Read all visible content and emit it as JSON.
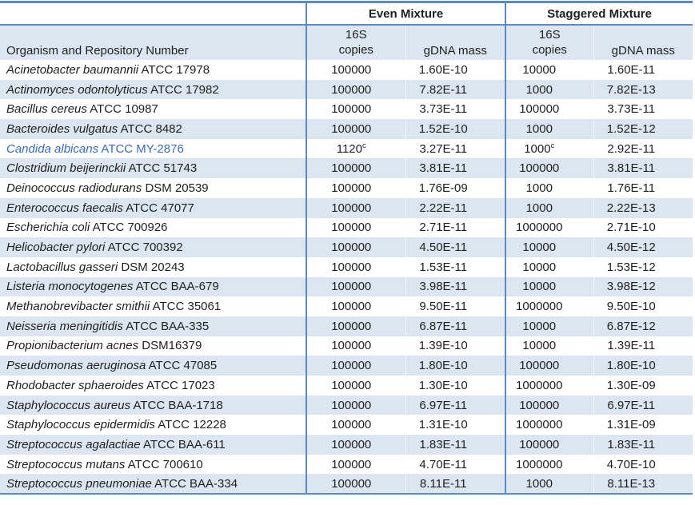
{
  "table": {
    "col_groups": [
      {
        "label": "Even Mixture"
      },
      {
        "label": "Staggered Mixture"
      }
    ],
    "headers": {
      "organism": "Organism and Repository Number",
      "copies_line1": "16S",
      "copies_line2": "copies",
      "gdna": "gDNA mass"
    },
    "rows": [
      {
        "name": "Acinetobacter baumannii",
        "repo": "ATCC 17978",
        "even_copies": "100000",
        "even_gdna": "1.60E-10",
        "stag_copies": "10000",
        "stag_gdna": "1.60E-11"
      },
      {
        "name": "Actinomyces odontolyticus",
        "repo": "ATCC 17982",
        "even_copies": "100000",
        "even_gdna": "7.82E-11",
        "stag_copies": "1000",
        "stag_gdna": "7.82E-13"
      },
      {
        "name": "Bacillus cereus",
        "repo": "ATCC 10987",
        "even_copies": "100000",
        "even_gdna": "3.73E-11",
        "stag_copies": "100000",
        "stag_gdna": "3.73E-11"
      },
      {
        "name": "Bacteroides vulgatus",
        "repo": "ATCC 8482",
        "even_copies": "100000",
        "even_gdna": "1.52E-10",
        "stag_copies": "1000",
        "stag_gdna": "1.52E-12"
      },
      {
        "name": "Candida albicans",
        "repo": "ATCC MY-2876",
        "even_copies": "1120",
        "even_copies_sup": "c",
        "even_gdna": "3.27E-11",
        "stag_copies": "1000",
        "stag_copies_sup": "c",
        "stag_gdna": "2.92E-11",
        "highlight": true
      },
      {
        "name": "Clostridium beijerinckii",
        "repo": "ATCC 51743",
        "even_copies": "100000",
        "even_gdna": "3.81E-11",
        "stag_copies": "100000",
        "stag_gdna": "3.81E-11"
      },
      {
        "name": "Deinococcus radiodurans",
        "repo": "DSM 20539",
        "even_copies": "100000",
        "even_gdna": "1.76E-09",
        "stag_copies": "1000",
        "stag_gdna": "1.76E-11"
      },
      {
        "name": "Enterococcus faecalis",
        "repo": "ATCC 47077",
        "even_copies": "100000",
        "even_gdna": "2.22E-11",
        "stag_copies": "1000",
        "stag_gdna": "2.22E-13"
      },
      {
        "name": "Escherichia coli",
        "repo": "ATCC 700926",
        "even_copies": "100000",
        "even_gdna": "2.71E-11",
        "stag_copies": "1000000",
        "stag_gdna": "2.71E-10"
      },
      {
        "name": "Helicobacter pylori",
        "repo": "ATCC 700392",
        "even_copies": "100000",
        "even_gdna": "4.50E-11",
        "stag_copies": "10000",
        "stag_gdna": "4.50E-12"
      },
      {
        "name": "Lactobacillus gasseri",
        "repo": "DSM 20243",
        "even_copies": "100000",
        "even_gdna": "1.53E-11",
        "stag_copies": "10000",
        "stag_gdna": "1.53E-12"
      },
      {
        "name": "Listeria monocytogenes",
        "repo": "ATCC BAA-679",
        "even_copies": "100000",
        "even_gdna": "3.98E-11",
        "stag_copies": "10000",
        "stag_gdna": "3.98E-12"
      },
      {
        "name": "Methanobrevibacter smithii",
        "repo": "ATCC 35061",
        "even_copies": "100000",
        "even_gdna": "9.50E-11",
        "stag_copies": "1000000",
        "stag_gdna": "9.50E-10"
      },
      {
        "name": "Neisseria meningitidis",
        "repo": "ATCC BAA-335",
        "even_copies": "100000",
        "even_gdna": "6.87E-11",
        "stag_copies": "10000",
        "stag_gdna": "6.87E-12"
      },
      {
        "name": "Propionibacterium acnes",
        "repo": "DSM16379",
        "even_copies": "100000",
        "even_gdna": "1.39E-10",
        "stag_copies": "10000",
        "stag_gdna": "1.39E-11"
      },
      {
        "name": "Pseudomonas aeruginosa",
        "repo": "ATCC 47085",
        "even_copies": "100000",
        "even_gdna": "1.80E-10",
        "stag_copies": "100000",
        "stag_gdna": "1.80E-10"
      },
      {
        "name": "Rhodobacter sphaeroides",
        "repo": "ATCC 17023",
        "even_copies": "100000",
        "even_gdna": "1.30E-10",
        "stag_copies": "1000000",
        "stag_gdna": "1.30E-09"
      },
      {
        "name": "Staphylococcus aureus",
        "repo": "ATCC BAA-1718",
        "even_copies": "100000",
        "even_gdna": "6.97E-11",
        "stag_copies": "100000",
        "stag_gdna": "6.97E-11"
      },
      {
        "name": "Staphylococcus epidermidis",
        "repo": "ATCC 12228",
        "even_copies": "100000",
        "even_gdna": "1.31E-10",
        "stag_copies": "1000000",
        "stag_gdna": "1.31E-09"
      },
      {
        "name": "Streptococcus agalactiae",
        "repo": "ATCC BAA-611",
        "even_copies": "100000",
        "even_gdna": "1.83E-11",
        "stag_copies": "100000",
        "stag_gdna": "1.83E-11"
      },
      {
        "name": "Streptococcus mutans",
        "repo": "ATCC 700610",
        "even_copies": "100000",
        "even_gdna": "4.70E-11",
        "stag_copies": "1000000",
        "stag_gdna": "4.70E-10"
      },
      {
        "name": "Streptococcus pneumoniae",
        "repo": "ATCC BAA-334",
        "even_copies": "100000",
        "even_gdna": "8.11E-11",
        "stag_copies": "1000",
        "stag_gdna": "8.11E-13"
      }
    ],
    "colors": {
      "stripe": "#dce6f1",
      "border": "#5b8bc5",
      "highlight_text": "#3b6cb3",
      "text": "#1f1f1f"
    }
  }
}
